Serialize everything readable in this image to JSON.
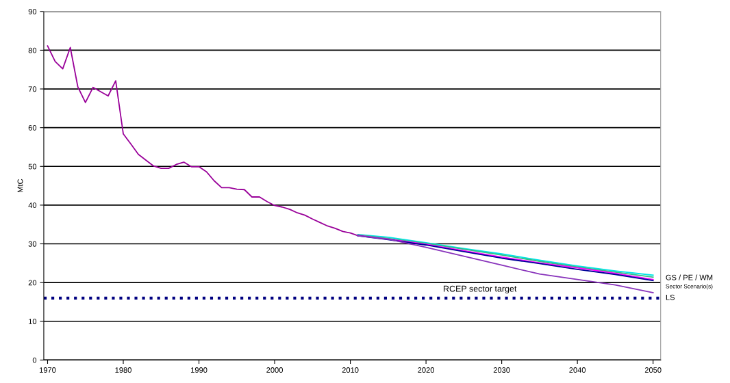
{
  "chart_data": {
    "type": "line",
    "ylabel": "MtC",
    "xlim": [
      1969.5,
      2051
    ],
    "xticks": [
      1970,
      1980,
      1990,
      2000,
      2010,
      2020,
      2030,
      2040,
      2050
    ],
    "ylim": [
      0,
      90
    ],
    "yticks": [
      0,
      10,
      20,
      30,
      40,
      50,
      60,
      70,
      80,
      90
    ],
    "grid": "y",
    "line_style": "solid",
    "marker": "none",
    "series": [
      {
        "color": "#990099",
        "x": [
          1970,
          1971,
          1972,
          1973,
          1974,
          1975,
          1976,
          1977,
          1978,
          1979,
          1980,
          1981,
          1982,
          1983,
          1984,
          1985,
          1986,
          1987,
          1988,
          1989,
          1990,
          1991,
          1992,
          1993,
          1994,
          1995,
          1996,
          1997,
          1998,
          1999,
          2000,
          2001,
          2002,
          2003,
          2004,
          2005,
          2006,
          2007,
          2008,
          2009,
          2010,
          2011
        ],
        "values": [
          81.1,
          77.1,
          75.2,
          80.7,
          70.5,
          66.5,
          70.4,
          69.3,
          68.2,
          72.1,
          58.4,
          55.8,
          53.1,
          51.6,
          50.1,
          49.5,
          49.5,
          50.5,
          51.1,
          49.9,
          49.9,
          48.6,
          46.3,
          44.5,
          44.5,
          44.1,
          44.0,
          42.1,
          42.1,
          40.9,
          39.9,
          39.5,
          38.9,
          38.0,
          37.4,
          36.4,
          35.5,
          34.6,
          34.0,
          33.2,
          32.8,
          32.1
        ]
      },
      {
        "color": "#00e5e5",
        "x": [
          2011,
          2015,
          2020,
          2025,
          2030,
          2035,
          2040,
          2045,
          2050
        ],
        "values": [
          32.4,
          31.7,
          30.3,
          28.8,
          27.4,
          25.8,
          24.3,
          23.0,
          21.9
        ]
      },
      {
        "color": "#33bb88",
        "x": [
          2011,
          2015,
          2020,
          2025,
          2030,
          2035,
          2040,
          2045,
          2050
        ],
        "values": [
          32.3,
          31.4,
          30.1,
          28.6,
          27.1,
          25.5,
          24.0,
          22.7,
          21.4
        ]
      },
      {
        "color": "#ff00ff",
        "x": [
          2011,
          2015,
          2020,
          2025,
          2030,
          2035,
          2040,
          2045,
          2050
        ],
        "values": [
          32.2,
          31.2,
          29.9,
          28.2,
          26.6,
          25.1,
          23.8,
          22.4,
          20.8
        ]
      },
      {
        "color": "#000099",
        "x": [
          2011,
          2015,
          2020,
          2025,
          2030,
          2035,
          2040,
          2045,
          2050
        ],
        "values": [
          32.1,
          31.1,
          29.7,
          28.0,
          26.3,
          24.9,
          23.4,
          22.1,
          20.5
        ]
      },
      {
        "color": "#8833bb",
        "x": [
          2011,
          2015,
          2020,
          2025,
          2030,
          2035,
          2040,
          2045,
          2050
        ],
        "values": [
          32.1,
          31.2,
          29.1,
          26.8,
          24.5,
          22.2,
          20.8,
          19.4,
          17.4
        ]
      }
    ],
    "ref_lines": [
      {
        "axis": "y",
        "value": 16,
        "label": "RCEP sector target",
        "color": "#000080",
        "line_style": "dotted"
      }
    ],
    "annotations": [
      "GS / PE / WM",
      "Sector Scenario(s)",
      "LS"
    ]
  }
}
